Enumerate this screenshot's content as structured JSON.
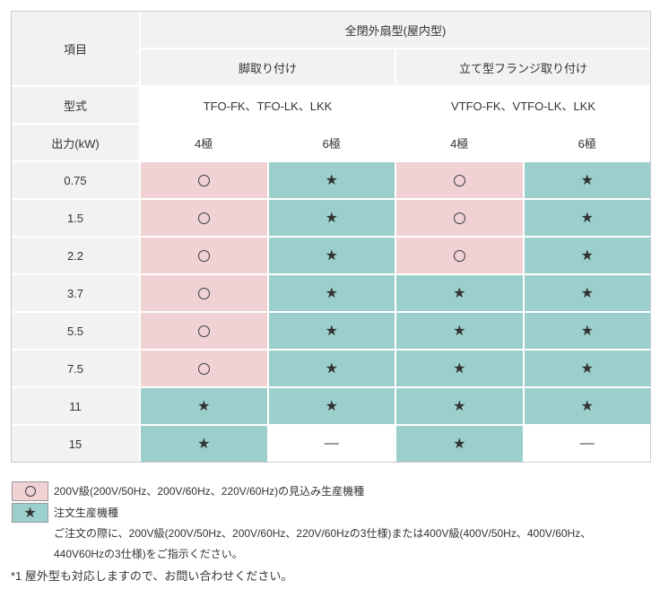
{
  "table": {
    "corner_label": "項目",
    "group_header": "全閉外扇型(屋内型)",
    "mount_headers": [
      "脚取り付け",
      "立て型フランジ取り付け"
    ],
    "model_label": "型式",
    "models": [
      "TFO-FK、TFO-LK、LKK",
      "VTFO-FK、VTFO-LK、LKK"
    ],
    "output_label": "出力(kW)",
    "pole_headers": [
      "4極",
      "6極",
      "4極",
      "6極"
    ],
    "rows": [
      {
        "output": "0.75",
        "cells": [
          "circle",
          "star",
          "circle",
          "star"
        ]
      },
      {
        "output": "1.5",
        "cells": [
          "circle",
          "star",
          "circle",
          "star"
        ]
      },
      {
        "output": "2.2",
        "cells": [
          "circle",
          "star",
          "circle",
          "star"
        ]
      },
      {
        "output": "3.7",
        "cells": [
          "circle",
          "star",
          "star",
          "star"
        ]
      },
      {
        "output": "5.5",
        "cells": [
          "circle",
          "star",
          "star",
          "star"
        ]
      },
      {
        "output": "7.5",
        "cells": [
          "circle",
          "star",
          "star",
          "star"
        ]
      },
      {
        "output": "11",
        "cells": [
          "star",
          "star",
          "star",
          "star"
        ]
      },
      {
        "output": "15",
        "cells": [
          "star",
          "dash",
          "star",
          "dash"
        ]
      }
    ],
    "symbols": {
      "circle": "○",
      "star": "★",
      "dash": "—"
    }
  },
  "legend": {
    "circle": {
      "symbol": "○",
      "text": "200V級(200V/50Hz、200V/60Hz、220V/60Hz)の見込み生産機種"
    },
    "star": {
      "symbol": "★",
      "title": "注文生産機種",
      "note_lines": [
        "ご注文の際に、200V級(200V/50Hz、200V/60Hz、220V/60Hzの3仕様)または400V級(400V/50Hz、400V/60Hz、",
        "440V60Hzの3仕様)をご指示ください。"
      ]
    }
  },
  "footnote": "*1 屋外型も対応しますので、お問い合わせください。",
  "colors": {
    "planned_bg": "#f0d1d4",
    "order_bg": "#9bcfcb",
    "header_bg": "#f2f2f2",
    "border": "#cccccc",
    "text": "#333333"
  }
}
